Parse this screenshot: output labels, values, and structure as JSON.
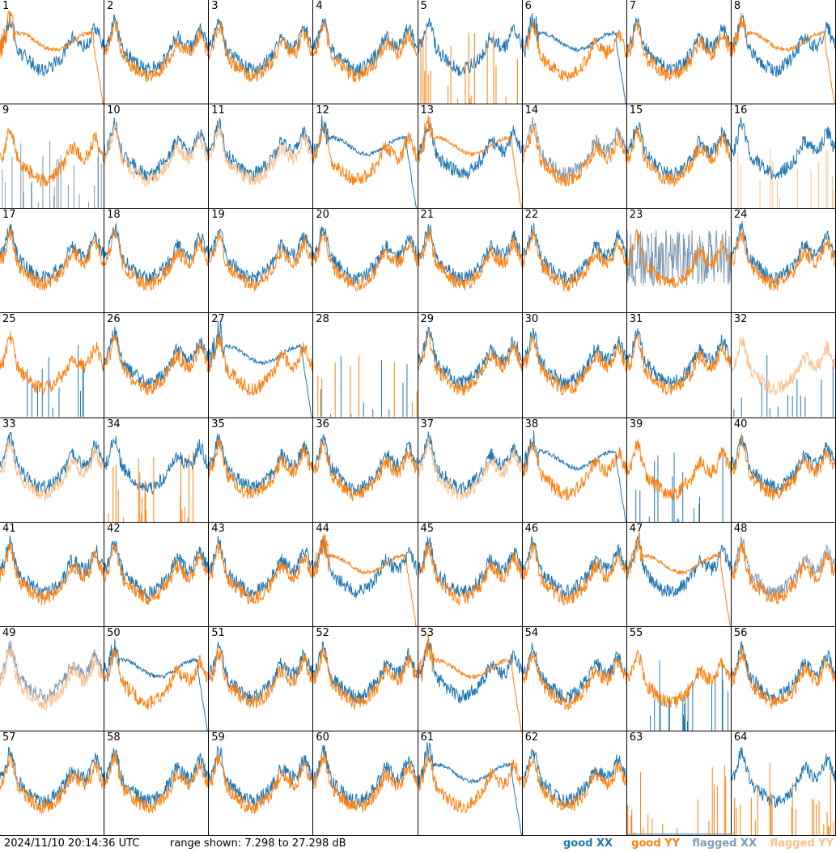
{
  "footer": {
    "timestamp": "2024/11/10 20:14:36 UTC",
    "range": "range shown: 7.298 to 27.298 dB"
  },
  "legend": [
    {
      "label": "good XX",
      "color": "#1f77b4"
    },
    {
      "label": "good YY",
      "color": "#ff7f0e"
    },
    {
      "label": "flagged XX",
      "color": "#7f9ab3"
    },
    {
      "label": "flagged YY",
      "color": "#ffbf8a"
    }
  ],
  "chart_data": {
    "type": "line",
    "grid": "8x8 small multiples",
    "ylim": [
      7.298,
      27.298
    ],
    "yunit": "dB",
    "panels": [
      {
        "id": "1",
        "xx": "good",
        "yy": "good",
        "xx_shape": "normal",
        "yy_shape": "dropout"
      },
      {
        "id": "2",
        "xx": "good",
        "yy": "good",
        "xx_shape": "normal",
        "yy_shape": "normal"
      },
      {
        "id": "3",
        "xx": "good",
        "yy": "good",
        "xx_shape": "normal",
        "yy_shape": "normal"
      },
      {
        "id": "4",
        "xx": "good",
        "yy": "good",
        "xx_shape": "normal",
        "yy_shape": "normal"
      },
      {
        "id": "5",
        "xx": "good",
        "yy": "good",
        "xx_shape": "normal",
        "yy_shape": "spikes"
      },
      {
        "id": "6",
        "xx": "good",
        "yy": "good",
        "xx_shape": "dropout",
        "yy_shape": "normal"
      },
      {
        "id": "7",
        "xx": "good",
        "yy": "good",
        "xx_shape": "normal",
        "yy_shape": "normal"
      },
      {
        "id": "8",
        "xx": "good",
        "yy": "good",
        "xx_shape": "normal",
        "yy_shape": "dropout"
      },
      {
        "id": "9",
        "xx": "flagged",
        "yy": "good",
        "xx_shape": "spikes",
        "yy_shape": "normal"
      },
      {
        "id": "10",
        "xx": "good",
        "yy": "flagged",
        "xx_shape": "normal",
        "yy_shape": "normal"
      },
      {
        "id": "11",
        "xx": "good",
        "yy": "flagged",
        "xx_shape": "normal",
        "yy_shape": "normal"
      },
      {
        "id": "12",
        "xx": "good",
        "yy": "good",
        "xx_shape": "dropout",
        "yy_shape": "normal"
      },
      {
        "id": "13",
        "xx": "good",
        "yy": "good",
        "xx_shape": "normal",
        "yy_shape": "dropout"
      },
      {
        "id": "14",
        "xx": "flagged",
        "yy": "good",
        "xx_shape": "normal",
        "yy_shape": "normal"
      },
      {
        "id": "15",
        "xx": "good",
        "yy": "good",
        "xx_shape": "normal",
        "yy_shape": "normal"
      },
      {
        "id": "16",
        "xx": "good",
        "yy": "flagged",
        "xx_shape": "normal",
        "yy_shape": "spikes"
      },
      {
        "id": "17",
        "xx": "good",
        "yy": "good",
        "xx_shape": "normal",
        "yy_shape": "normal"
      },
      {
        "id": "18",
        "xx": "good",
        "yy": "good",
        "xx_shape": "normal",
        "yy_shape": "normal"
      },
      {
        "id": "19",
        "xx": "good",
        "yy": "good",
        "xx_shape": "normal",
        "yy_shape": "normal"
      },
      {
        "id": "20",
        "xx": "good",
        "yy": "good",
        "xx_shape": "normal",
        "yy_shape": "normal"
      },
      {
        "id": "21",
        "xx": "good",
        "yy": "good",
        "xx_shape": "normal",
        "yy_shape": "normal"
      },
      {
        "id": "22",
        "xx": "good",
        "yy": "good",
        "xx_shape": "normal",
        "yy_shape": "normal"
      },
      {
        "id": "23",
        "xx": "flagged",
        "yy": "good",
        "xx_shape": "noisy",
        "yy_shape": "normal"
      },
      {
        "id": "24",
        "xx": "good",
        "yy": "good",
        "xx_shape": "normal",
        "yy_shape": "normal"
      },
      {
        "id": "25",
        "xx": "good",
        "yy": "good",
        "xx_shape": "spikes",
        "yy_shape": "normal"
      },
      {
        "id": "26",
        "xx": "good",
        "yy": "good",
        "xx_shape": "normal",
        "yy_shape": "normal"
      },
      {
        "id": "27",
        "xx": "good",
        "yy": "good",
        "xx_shape": "dropout",
        "yy_shape": "normal"
      },
      {
        "id": "28",
        "xx": "good",
        "yy": "good",
        "xx_shape": "spikes",
        "yy_shape": "spikes"
      },
      {
        "id": "29",
        "xx": "good",
        "yy": "good",
        "xx_shape": "normal",
        "yy_shape": "normal"
      },
      {
        "id": "30",
        "xx": "good",
        "yy": "good",
        "xx_shape": "normal",
        "yy_shape": "normal"
      },
      {
        "id": "31",
        "xx": "good",
        "yy": "good",
        "xx_shape": "normal",
        "yy_shape": "normal"
      },
      {
        "id": "32",
        "xx": "good",
        "yy": "flagged",
        "xx_shape": "spikes",
        "yy_shape": "normal"
      },
      {
        "id": "33",
        "xx": "good",
        "yy": "flagged",
        "xx_shape": "normal",
        "yy_shape": "normal"
      },
      {
        "id": "34",
        "xx": "good",
        "yy": "good",
        "xx_shape": "normal",
        "yy_shape": "spikes"
      },
      {
        "id": "35",
        "xx": "good",
        "yy": "good",
        "xx_shape": "normal",
        "yy_shape": "normal"
      },
      {
        "id": "36",
        "xx": "good",
        "yy": "good",
        "xx_shape": "normal",
        "yy_shape": "normal"
      },
      {
        "id": "37",
        "xx": "good",
        "yy": "flagged",
        "xx_shape": "normal",
        "yy_shape": "normal"
      },
      {
        "id": "38",
        "xx": "good",
        "yy": "good",
        "xx_shape": "dropout",
        "yy_shape": "normal"
      },
      {
        "id": "39",
        "xx": "good",
        "yy": "good",
        "xx_shape": "spikes",
        "yy_shape": "normal"
      },
      {
        "id": "40",
        "xx": "good",
        "yy": "good",
        "xx_shape": "normal",
        "yy_shape": "normal"
      },
      {
        "id": "41",
        "xx": "good",
        "yy": "good",
        "xx_shape": "normal",
        "yy_shape": "normal"
      },
      {
        "id": "42",
        "xx": "good",
        "yy": "good",
        "xx_shape": "normal",
        "yy_shape": "normal"
      },
      {
        "id": "43",
        "xx": "good",
        "yy": "good",
        "xx_shape": "normal",
        "yy_shape": "normal"
      },
      {
        "id": "44",
        "xx": "good",
        "yy": "good",
        "xx_shape": "normal",
        "yy_shape": "dropout"
      },
      {
        "id": "45",
        "xx": "good",
        "yy": "good",
        "xx_shape": "normal",
        "yy_shape": "normal"
      },
      {
        "id": "46",
        "xx": "good",
        "yy": "good",
        "xx_shape": "normal",
        "yy_shape": "normal"
      },
      {
        "id": "47",
        "xx": "good",
        "yy": "good",
        "xx_shape": "normal",
        "yy_shape": "dropout"
      },
      {
        "id": "48",
        "xx": "flagged",
        "yy": "good",
        "xx_shape": "normal",
        "yy_shape": "normal"
      },
      {
        "id": "49",
        "xx": "flagged",
        "yy": "flagged",
        "xx_shape": "normal",
        "yy_shape": "normal"
      },
      {
        "id": "50",
        "xx": "good",
        "yy": "good",
        "xx_shape": "dropout",
        "yy_shape": "normal"
      },
      {
        "id": "51",
        "xx": "good",
        "yy": "good",
        "xx_shape": "normal",
        "yy_shape": "normal"
      },
      {
        "id": "52",
        "xx": "good",
        "yy": "good",
        "xx_shape": "normal",
        "yy_shape": "normal"
      },
      {
        "id": "53",
        "xx": "good",
        "yy": "good",
        "xx_shape": "normal",
        "yy_shape": "dropout"
      },
      {
        "id": "54",
        "xx": "good",
        "yy": "good",
        "xx_shape": "normal",
        "yy_shape": "normal"
      },
      {
        "id": "55",
        "xx": "good",
        "yy": "good",
        "xx_shape": "spikes",
        "yy_shape": "normal"
      },
      {
        "id": "56",
        "xx": "good",
        "yy": "good",
        "xx_shape": "normal",
        "yy_shape": "normal"
      },
      {
        "id": "57",
        "xx": "good",
        "yy": "good",
        "xx_shape": "normal",
        "yy_shape": "normal"
      },
      {
        "id": "58",
        "xx": "good",
        "yy": "good",
        "xx_shape": "normal",
        "yy_shape": "normal"
      },
      {
        "id": "59",
        "xx": "good",
        "yy": "good",
        "xx_shape": "normal",
        "yy_shape": "normal"
      },
      {
        "id": "60",
        "xx": "good",
        "yy": "good",
        "xx_shape": "normal",
        "yy_shape": "normal"
      },
      {
        "id": "61",
        "xx": "good",
        "yy": "good",
        "xx_shape": "dropout",
        "yy_shape": "normal"
      },
      {
        "id": "62",
        "xx": "good",
        "yy": "good",
        "xx_shape": "normal",
        "yy_shape": "normal"
      },
      {
        "id": "63",
        "xx": "good",
        "yy": "good",
        "xx_shape": "flat",
        "yy_shape": "spikes"
      },
      {
        "id": "64",
        "xx": "good",
        "yy": "good",
        "xx_shape": "normal",
        "yy_shape": "spikes"
      }
    ]
  }
}
